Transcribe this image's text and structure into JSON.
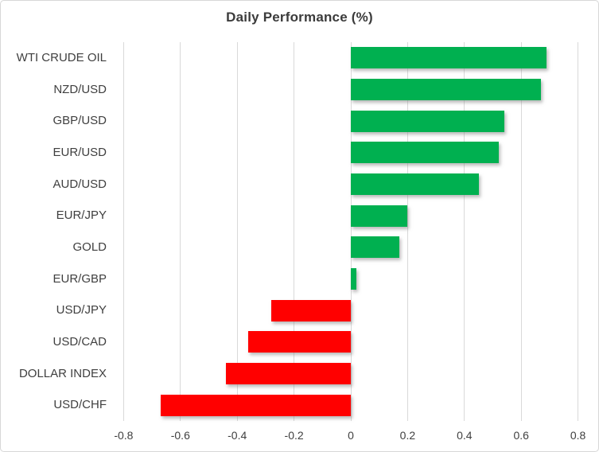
{
  "chart_data": {
    "type": "bar",
    "orientation": "horizontal",
    "title": "Daily Performance (%)",
    "categories": [
      "WTI CRUDE OIL",
      "NZD/USD",
      "GBP/USD",
      "EUR/USD",
      "AUD/USD",
      "EUR/JPY",
      "GOLD",
      "EUR/GBP",
      "USD/JPY",
      "USD/CAD",
      "DOLLAR INDEX",
      "USD/CHF"
    ],
    "values": [
      0.69,
      0.67,
      0.54,
      0.52,
      0.45,
      0.2,
      0.17,
      0.02,
      -0.28,
      -0.36,
      -0.44,
      -0.67
    ],
    "xlabel": "",
    "ylabel": "",
    "xlim": [
      -0.8,
      0.8
    ],
    "x_ticks": [
      -0.8,
      -0.6,
      -0.4,
      -0.2,
      0,
      0.2,
      0.4,
      0.6,
      0.8
    ],
    "x_tick_labels": [
      "-0.8",
      "-0.6",
      "-0.4",
      "-0.2",
      "0",
      "0.2",
      "0.4",
      "0.6",
      "0.8"
    ],
    "grid": "vertical-only",
    "legend": "none",
    "colors": {
      "positive_bar": "#00B050",
      "negative_bar": "#FF0000",
      "gridline": "#D9D9D9",
      "text": "#3F3F3F",
      "title_text": "#3B3B3B",
      "background": "#FFFFFF",
      "border": "#D7D7D7"
    }
  }
}
